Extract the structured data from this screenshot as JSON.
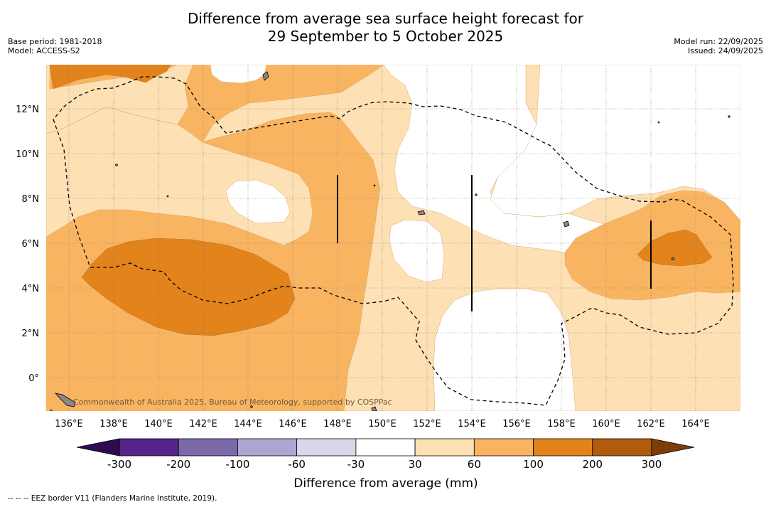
{
  "title": {
    "line1": "Difference from average sea surface height forecast for",
    "line2": "29 September to 5 October 2025"
  },
  "info_left": {
    "base_period": "Base period: 1981-2018",
    "model": "Model: ACCESS-S2"
  },
  "info_right": {
    "model_run": "Model run: 22/09/2025",
    "issued": "Issued: 24/09/2025"
  },
  "map": {
    "lon_range": [
      135,
      166
    ],
    "lat_range": [
      -1.5,
      14
    ],
    "lon_ticks": [
      "136°E",
      "138°E",
      "140°E",
      "142°E",
      "144°E",
      "146°E",
      "148°E",
      "150°E",
      "152°E",
      "154°E",
      "156°E",
      "158°E",
      "160°E",
      "162°E",
      "164°E"
    ],
    "lat_ticks": [
      "12°N",
      "10°N",
      "8°N",
      "6°N",
      "4°N",
      "2°N",
      "0°"
    ],
    "attribution": "Commonwealth of Australia 2025, Bureau of Meteorology, supported by COSPPac"
  },
  "colorbar": {
    "title": "Difference from average (mm)",
    "tick_labels": [
      "-300",
      "-200",
      "-100",
      "-60",
      "-30",
      "30",
      "60",
      "100",
      "200",
      "300"
    ],
    "colors": [
      "#55238a",
      "#7b6aa9",
      "#ada6d0",
      "#d8d8ea",
      "#ffffff",
      "#fde0b4",
      "#f9b461",
      "#e2831b",
      "#b25a0e"
    ],
    "under_color": "#2d0d4f",
    "over_color": "#7d3d08"
  },
  "footer": {
    "legend_text": "--  --  -- EEZ border V11 (Flanders Marine Institute, 2019)."
  }
}
